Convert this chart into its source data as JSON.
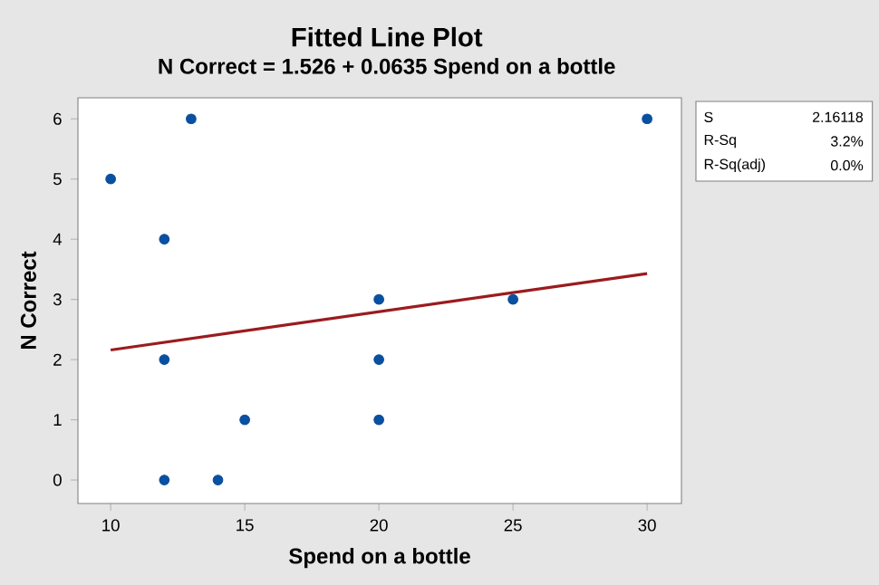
{
  "chart_data": {
    "type": "scatter",
    "title": "Fitted Line Plot",
    "subtitle": "N Correct = 1.526 + 0.0635 Spend on a bottle",
    "xlabel": "Spend on a bottle",
    "ylabel": "N Correct",
    "series": [
      {
        "color": "#0a50a0",
        "x": [
          10,
          12,
          12,
          12,
          13,
          14,
          15,
          20,
          20,
          20,
          25,
          30
        ],
        "values": [
          5,
          4,
          2,
          0,
          6,
          0,
          1,
          3,
          2,
          1,
          3,
          6
        ]
      },
      {
        "type": "line",
        "color": "#9b1b1e",
        "line_style": "solid",
        "marker": "none",
        "x": [
          10,
          30
        ],
        "values": [
          2.16,
          3.43
        ]
      }
    ],
    "xlim": [
      8.78,
      31.28
    ],
    "ylim": [
      -0.39,
      6.35
    ],
    "xticks": [
      10,
      15,
      20,
      25,
      30
    ],
    "yticks": [
      0,
      1,
      2,
      3,
      4,
      5,
      6
    ],
    "grid": false,
    "marker": "circle",
    "annotations": [
      "S",
      "2.16118",
      "R-Sq",
      "3.2%",
      "R-Sq(adj)",
      "0.0%"
    ]
  }
}
